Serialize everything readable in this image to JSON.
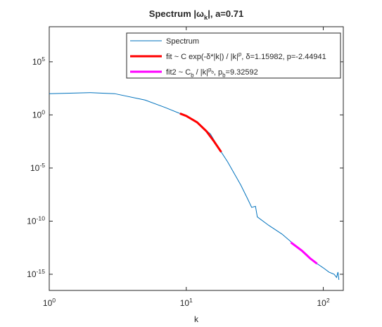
{
  "chart_data": {
    "type": "line",
    "title": "Spectrum |ω_k|, a=0.71",
    "xlabel": "k",
    "xscale": "log",
    "yscale": "log",
    "xlim": [
      1,
      140
    ],
    "ylim": [
      3e-17,
      200000000.0
    ],
    "xticks": [
      {
        "value": 1,
        "label": "10^0"
      },
      {
        "value": 10,
        "label": "10^1"
      },
      {
        "value": 100,
        "label": "10^2"
      }
    ],
    "yticks": [
      {
        "value": 1e-15,
        "label": "10^-15"
      },
      {
        "value": 1e-10,
        "label": "10^-10"
      },
      {
        "value": 1e-05,
        "label": "10^-5"
      },
      {
        "value": 1,
        "label": "10^0"
      },
      {
        "value": 100000,
        "label": "10^5"
      }
    ],
    "legend": "northeast",
    "series": [
      {
        "name": "Spectrum",
        "color": "#0072bd",
        "line_width": 1,
        "x": [
          1,
          2,
          3,
          5,
          7,
          9,
          10,
          12,
          15,
          18,
          20,
          25,
          28,
          30,
          32,
          33,
          40,
          50,
          60,
          70,
          80,
          90,
          100,
          110,
          120,
          125,
          128,
          130
        ],
        "values": [
          100,
          125,
          100,
          25,
          5,
          1.35,
          0.8,
          0.2,
          0.016,
          0.00032,
          4e-05,
          2.5e-07,
          1.3e-08,
          2e-09,
          2.5e-09,
          2.5e-10,
          4e-11,
          6e-12,
          8e-13,
          1.6e-13,
          3.2e-14,
          1e-14,
          4e-15,
          1.6e-15,
          1e-15,
          5e-16,
          1.6e-15,
          3e-16
        ]
      },
      {
        "name": "fit ~ C exp(-δ*|k|) / |k|^p, δ=1.15982, p=-2.44941",
        "color": "#ff0000",
        "line_width": 3,
        "x": [
          9,
          10,
          12,
          14,
          16,
          18
        ],
        "values": [
          1.35,
          0.8,
          0.2,
          0.03,
          0.003,
          0.00032
        ]
      },
      {
        "name": "fit2 ~ C_b / |k|^{p_b}, p_b=9.32592",
        "color": "#ff00ff",
        "line_width": 3,
        "x": [
          58,
          70,
          80,
          90
        ],
        "values": [
          1e-12,
          1.6e-13,
          3.2e-14,
          1e-14
        ]
      }
    ]
  }
}
